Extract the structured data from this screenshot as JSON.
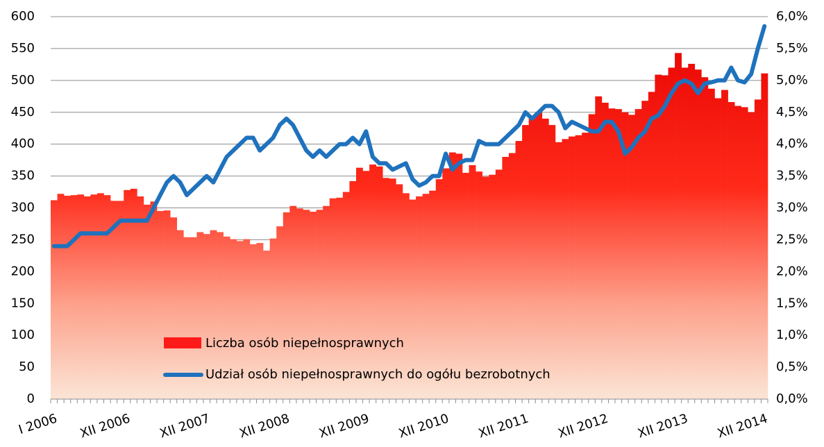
{
  "chart_data": {
    "type": "bar-line",
    "categories": [
      "I 2006",
      null,
      null,
      null,
      null,
      null,
      null,
      null,
      null,
      null,
      null,
      "XII 2006",
      null,
      null,
      null,
      null,
      null,
      null,
      null,
      null,
      null,
      null,
      null,
      "XII 2007",
      null,
      null,
      null,
      null,
      null,
      null,
      null,
      null,
      null,
      null,
      null,
      "XII 2008",
      null,
      null,
      null,
      null,
      null,
      null,
      null,
      null,
      null,
      null,
      null,
      "XII 2009",
      null,
      null,
      null,
      null,
      null,
      null,
      null,
      null,
      null,
      null,
      null,
      "XII 2010",
      null,
      null,
      null,
      null,
      null,
      null,
      null,
      null,
      null,
      null,
      null,
      "XII 2011",
      null,
      null,
      null,
      null,
      null,
      null,
      null,
      null,
      null,
      null,
      null,
      "XII 2012",
      null,
      null,
      null,
      null,
      null,
      null,
      null,
      null,
      null,
      null,
      null,
      "XII 2013",
      null,
      null,
      null,
      null,
      null,
      null,
      null,
      null,
      null,
      null,
      null,
      "XII 2014"
    ],
    "series": [
      {
        "name": "Liczba osób niepełnosprawnych",
        "type": "bar",
        "color": "#ff1a1a",
        "values": [
          312,
          322,
          319,
          320,
          321,
          318,
          321,
          323,
          320,
          311,
          311,
          328,
          330,
          318,
          305,
          310,
          295,
          296,
          285,
          265,
          254,
          254,
          262,
          259,
          265,
          262,
          255,
          251,
          248,
          251,
          243,
          245,
          233,
          252,
          271,
          293,
          303,
          299,
          297,
          294,
          297,
          303,
          315,
          316,
          325,
          342,
          363,
          358,
          368,
          365,
          347,
          346,
          337,
          323,
          313,
          318,
          322,
          327,
          345,
          362,
          387,
          385,
          355,
          367,
          357,
          349,
          352,
          360,
          380,
          386,
          405,
          430,
          440,
          450,
          440,
          430,
          403,
          408,
          412,
          414,
          418,
          447,
          475,
          465,
          456,
          455,
          450,
          446,
          455,
          468,
          482,
          509,
          508,
          520,
          543,
          520,
          526,
          517,
          505,
          487,
          472,
          485,
          466,
          460,
          458,
          450,
          470,
          511
        ]
      },
      {
        "name": "Udział osób niepełnosprawnych do ogółu bezrobotnych",
        "type": "line",
        "axis": "y2",
        "color": "#1f72bd",
        "values": [
          2.4,
          2.4,
          2.4,
          2.5,
          2.6,
          2.6,
          2.6,
          2.6,
          2.6,
          2.7,
          2.8,
          2.8,
          2.8,
          2.8,
          2.8,
          3.0,
          3.2,
          3.4,
          3.5,
          3.4,
          3.2,
          3.3,
          3.4,
          3.5,
          3.4,
          3.6,
          3.8,
          3.9,
          4.0,
          4.1,
          4.1,
          3.9,
          4.0,
          4.1,
          4.3,
          4.4,
          4.3,
          4.1,
          3.9,
          3.8,
          3.9,
          3.8,
          3.9,
          4.0,
          4.0,
          4.1,
          4.0,
          4.2,
          3.8,
          3.7,
          3.7,
          3.6,
          3.65,
          3.7,
          3.45,
          3.35,
          3.4,
          3.5,
          3.5,
          3.85,
          3.6,
          3.7,
          3.75,
          3.75,
          4.05,
          4.0,
          4.0,
          4.0,
          4.1,
          4.2,
          4.3,
          4.5,
          4.4,
          4.5,
          4.6,
          4.6,
          4.5,
          4.25,
          4.35,
          4.3,
          4.25,
          4.2,
          4.2,
          4.35,
          4.35,
          4.2,
          3.85,
          3.95,
          4.1,
          4.2,
          4.4,
          4.45,
          4.6,
          4.8,
          4.95,
          5.0,
          4.95,
          4.8,
          4.95,
          4.97,
          5.0,
          5.0,
          5.2,
          5.0,
          4.97,
          5.1,
          5.5,
          5.85
        ]
      }
    ],
    "ylim": [
      0,
      600
    ],
    "yticks": [
      0,
      50,
      100,
      150,
      200,
      250,
      300,
      350,
      400,
      450,
      500,
      550,
      600
    ],
    "y2lim": [
      0,
      6
    ],
    "y2ticks": [
      {
        "value": 0,
        "label": "0,0%"
      },
      {
        "value": 0.5,
        "label": "0,5%"
      },
      {
        "value": 1,
        "label": "1,0%"
      },
      {
        "value": 1.5,
        "label": "1,5%"
      },
      {
        "value": 2,
        "label": "2,0%"
      },
      {
        "value": 2.5,
        "label": "2,5%"
      },
      {
        "value": 3,
        "label": "3,0%"
      },
      {
        "value": 3.5,
        "label": "3,5%"
      },
      {
        "value": 4,
        "label": "4,0%"
      },
      {
        "value": 4.5,
        "label": "4,5%"
      },
      {
        "value": 5,
        "label": "5,0%"
      },
      {
        "value": 5.5,
        "label": "5,5%"
      },
      {
        "value": 6,
        "label": "6,0%"
      }
    ],
    "grid": true,
    "legend": "bottom"
  }
}
